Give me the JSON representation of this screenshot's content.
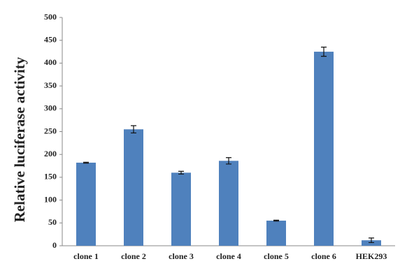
{
  "chart_data": {
    "type": "bar",
    "y_label": "Relative luciferase activity",
    "categories": [
      "clone 1",
      "clone 2",
      "clone 3",
      "clone 4",
      "clone 5",
      "clone 6",
      "HEK293"
    ],
    "values": [
      182,
      255,
      160,
      186,
      55,
      425,
      12
    ],
    "errors": [
      1,
      8,
      3,
      7,
      1,
      10,
      5
    ],
    "color": "#4f81bd",
    "ylim": [
      0,
      500
    ],
    "yticks": [
      0,
      50,
      100,
      150,
      200,
      250,
      300,
      350,
      400,
      450,
      500
    ],
    "grid": false
  }
}
